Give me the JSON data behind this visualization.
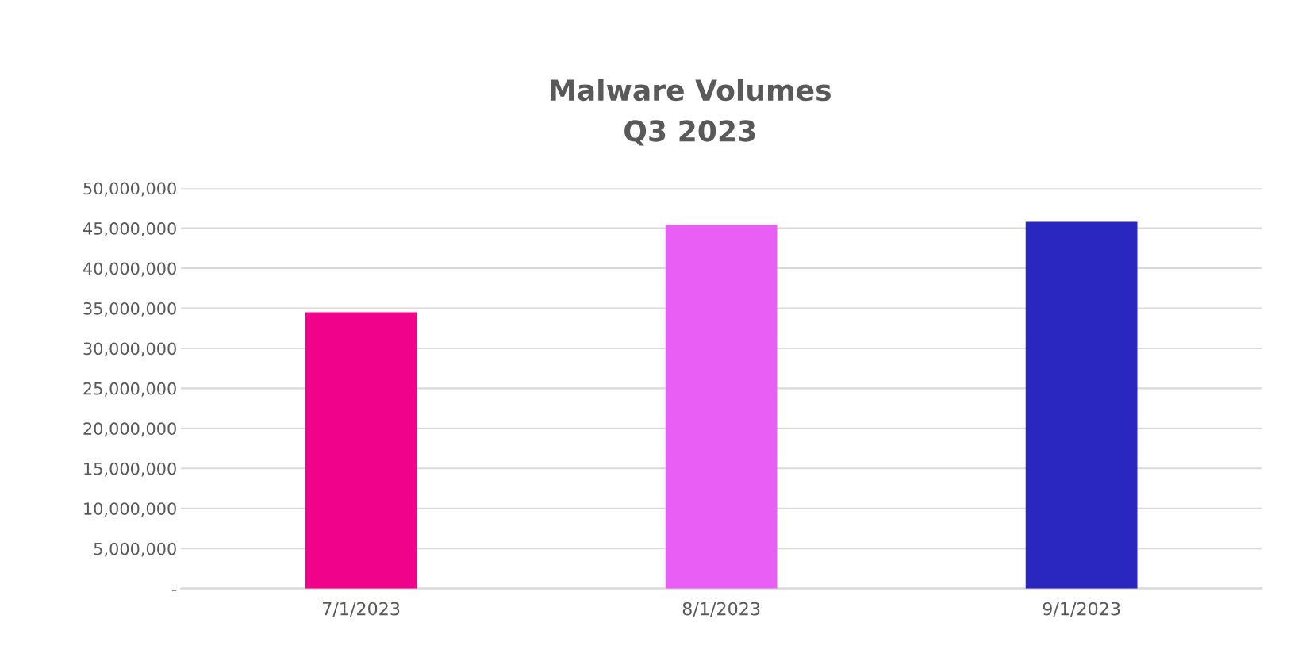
{
  "chart_data": {
    "type": "bar",
    "title": "Malware Volumes\nQ3 2023",
    "categories": [
      "7/1/2023",
      "8/1/2023",
      "9/1/2023"
    ],
    "values": [
      34500000,
      45400000,
      45800000
    ],
    "colors": [
      "#f0038a",
      "#e95ff5",
      "#2a27c0"
    ],
    "ylim": [
      0,
      50000000
    ],
    "yticks": [
      {
        "value": 0,
        "label": "-"
      },
      {
        "value": 5000000,
        "label": "5,000,000"
      },
      {
        "value": 10000000,
        "label": "10,000,000"
      },
      {
        "value": 15000000,
        "label": "15,000,000"
      },
      {
        "value": 20000000,
        "label": "20,000,000"
      },
      {
        "value": 25000000,
        "label": "25,000,000"
      },
      {
        "value": 30000000,
        "label": "30,000,000"
      },
      {
        "value": 35000000,
        "label": "35,000,000"
      },
      {
        "value": 40000000,
        "label": "40,000,000"
      },
      {
        "value": 45000000,
        "label": "45,000,000"
      },
      {
        "value": 50000000,
        "label": "50,000,000"
      }
    ],
    "grid": "y"
  }
}
